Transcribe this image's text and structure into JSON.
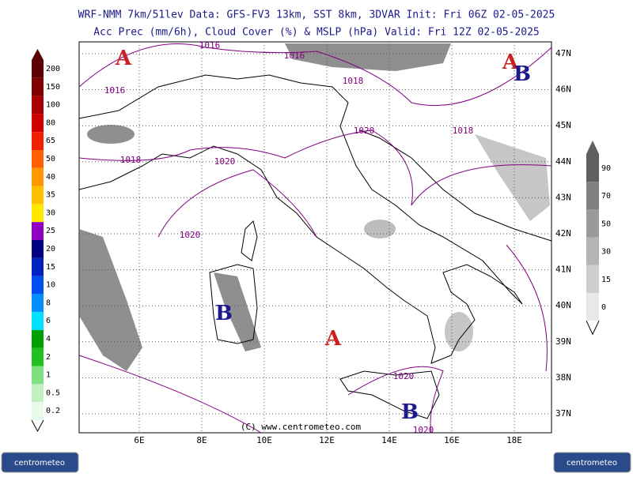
{
  "header": {
    "lines": [
      "WRF-NMM 7km/51lev  Data: GFS-FV3 13km, SST 8km, 3DVAR  Init: Fri 06Z 02-05-2025",
      "Acc Prec (mm/6h), Cloud Cover (%) & MSLP (hPa)  Valid: Fri 12Z 02-05-2025"
    ]
  },
  "map": {
    "lat_labels": [
      "47N",
      "46N",
      "45N",
      "44N",
      "43N",
      "42N",
      "41N",
      "40N",
      "39N",
      "38N",
      "37N"
    ],
    "lon_labels": [
      "6E",
      "8E",
      "10E",
      "12E",
      "14E",
      "16E",
      "18E"
    ],
    "isobar_labels": [
      "1016",
      "1016",
      "1016",
      "1018",
      "1018",
      "1020",
      "1020",
      "1018",
      "1020",
      "1020",
      "1020"
    ],
    "pressure_centers": [
      {
        "text": "A",
        "color": "#cc2020"
      },
      {
        "text": "A",
        "color": "#cc2020"
      },
      {
        "text": "B",
        "color": "#1a1a8c"
      },
      {
        "text": "B",
        "color": "#1a1a8c"
      },
      {
        "text": "A",
        "color": "#cc2020"
      },
      {
        "text": "B",
        "color": "#1a1a8c"
      }
    ],
    "copyright": "(C) www.centrometeo.com"
  },
  "legend_precip": {
    "labels": [
      "200",
      "150",
      "100",
      "80",
      "65",
      "50",
      "40",
      "35",
      "30",
      "25",
      "20",
      "15",
      "10",
      "8",
      "6",
      "4",
      "2",
      "1",
      "0.5",
      "0.2"
    ],
    "colors": [
      "#5a0000",
      "#800000",
      "#a80000",
      "#d00000",
      "#f02000",
      "#ff6000",
      "#ff9800",
      "#ffc000",
      "#ffe800",
      "#9000c0",
      "#000080",
      "#0020c0",
      "#0050f0",
      "#0090ff",
      "#00e0ff",
      "#00a000",
      "#20c020",
      "#80e080",
      "#c0f0c0",
      "#e8fae8"
    ]
  },
  "legend_cloud": {
    "labels": [
      "90",
      "70",
      "50",
      "30",
      "15",
      "0"
    ],
    "colors": [
      "#606060",
      "#808080",
      "#9a9a9a",
      "#b4b4b4",
      "#cecece",
      "#e8e8e8"
    ]
  },
  "logos": [
    "centrometeo",
    "centrometeo"
  ]
}
